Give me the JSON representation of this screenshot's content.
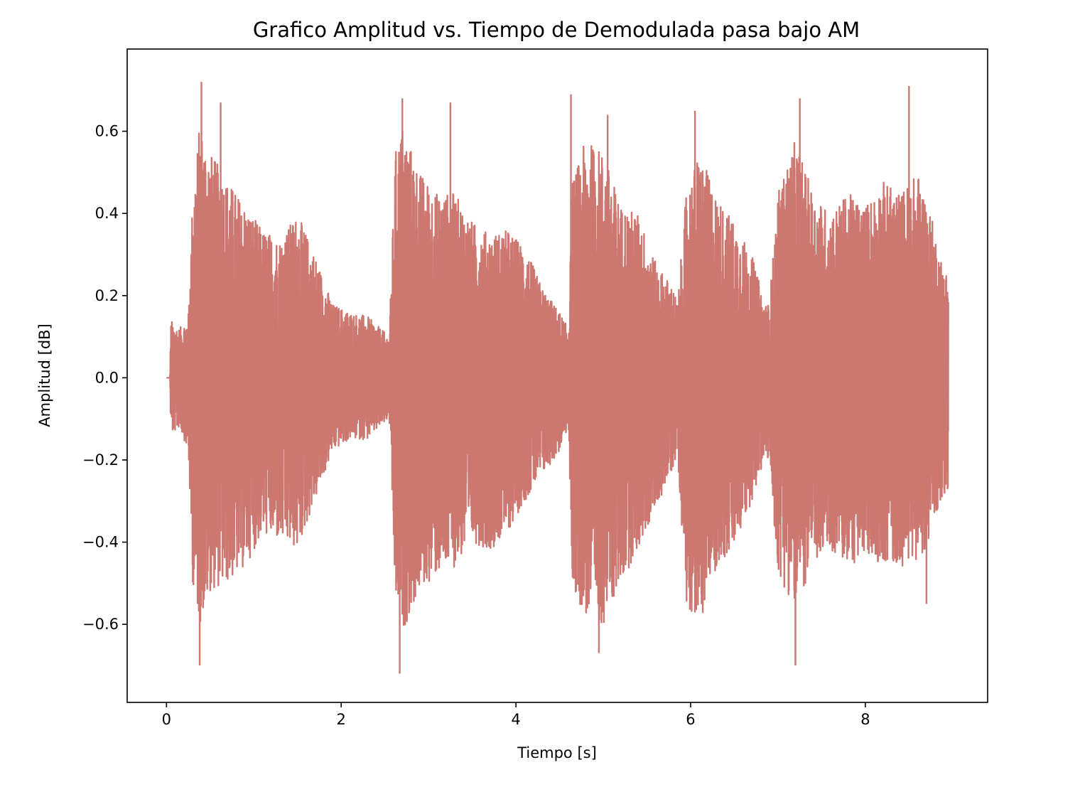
{
  "chart_data": {
    "type": "line",
    "title": "Grafico Amplitud vs. Tiempo de Demodulada pasa bajo AM",
    "xlabel": "Tiempo [s]",
    "ylabel": "Amplitud [dB]",
    "xlim": [
      -0.45,
      9.4
    ],
    "ylim": [
      -0.79,
      0.8
    ],
    "x_ticks": [
      0,
      2,
      4,
      6,
      8
    ],
    "x_tick_labels": [
      "0",
      "2",
      "4",
      "6",
      "8"
    ],
    "y_ticks": [
      0.6,
      0.4,
      0.2,
      0.0,
      -0.2,
      -0.4,
      -0.6
    ],
    "y_tick_labels": [
      "0.6",
      "0.4",
      "0.2",
      "0.0",
      "−0.2",
      "−0.4",
      "−0.6"
    ],
    "grid": false,
    "legend": "none",
    "series": [
      {
        "color": "#cd7771",
        "t_range": [
          0,
          8.95
        ],
        "envelope": {
          "t": [
            0.0,
            0.04,
            0.05,
            0.15,
            0.25,
            0.3,
            0.38,
            0.5,
            0.7,
            0.9,
            1.1,
            1.3,
            1.5,
            1.7,
            1.9,
            2.1,
            2.3,
            2.45,
            2.55,
            2.62,
            2.7,
            2.9,
            3.1,
            3.3,
            3.5,
            3.7,
            3.9,
            4.1,
            4.3,
            4.5,
            4.6,
            4.65,
            4.8,
            5.0,
            5.2,
            5.4,
            5.6,
            5.8,
            5.85,
            5.95,
            6.1,
            6.3,
            6.5,
            6.7,
            6.85,
            6.9,
            7.0,
            7.2,
            7.4,
            7.6,
            7.8,
            8.0,
            8.2,
            8.4,
            8.6,
            8.75,
            8.85,
            8.95
          ],
          "upper": [
            0.0,
            0.0,
            0.14,
            0.12,
            0.15,
            0.45,
            0.62,
            0.55,
            0.48,
            0.42,
            0.36,
            0.34,
            0.4,
            0.3,
            0.18,
            0.16,
            0.15,
            0.12,
            0.1,
            0.55,
            0.62,
            0.5,
            0.45,
            0.45,
            0.38,
            0.35,
            0.36,
            0.32,
            0.22,
            0.16,
            0.12,
            0.48,
            0.58,
            0.55,
            0.42,
            0.4,
            0.28,
            0.22,
            0.18,
            0.45,
            0.55,
            0.44,
            0.38,
            0.3,
            0.18,
            0.18,
            0.45,
            0.58,
            0.45,
            0.4,
            0.45,
            0.42,
            0.48,
            0.45,
            0.5,
            0.4,
            0.3,
            0.25
          ],
          "lower": [
            0.0,
            0.0,
            -0.14,
            -0.12,
            -0.18,
            -0.5,
            -0.6,
            -0.52,
            -0.5,
            -0.46,
            -0.38,
            -0.4,
            -0.42,
            -0.3,
            -0.18,
            -0.15,
            -0.15,
            -0.12,
            -0.1,
            -0.55,
            -0.62,
            -0.52,
            -0.48,
            -0.46,
            -0.4,
            -0.42,
            -0.38,
            -0.3,
            -0.24,
            -0.18,
            -0.12,
            -0.52,
            -0.58,
            -0.6,
            -0.5,
            -0.42,
            -0.32,
            -0.22,
            -0.18,
            -0.55,
            -0.6,
            -0.46,
            -0.42,
            -0.3,
            -0.2,
            -0.2,
            -0.48,
            -0.56,
            -0.46,
            -0.42,
            -0.46,
            -0.44,
            -0.45,
            -0.46,
            -0.44,
            -0.4,
            -0.3,
            -0.28
          ]
        },
        "peaks": [
          {
            "t": 0.4,
            "y": 0.72
          },
          {
            "t": 0.38,
            "y": -0.7
          },
          {
            "t": 0.62,
            "y": 0.67
          },
          {
            "t": 2.7,
            "y": 0.68
          },
          {
            "t": 2.67,
            "y": -0.72
          },
          {
            "t": 3.25,
            "y": 0.67
          },
          {
            "t": 4.63,
            "y": 0.69
          },
          {
            "t": 4.95,
            "y": -0.67
          },
          {
            "t": 5.05,
            "y": 0.64
          },
          {
            "t": 6.05,
            "y": 0.65
          },
          {
            "t": 7.25,
            "y": 0.68
          },
          {
            "t": 7.2,
            "y": -0.7
          },
          {
            "t": 8.5,
            "y": 0.71
          },
          {
            "t": 8.7,
            "y": -0.55
          }
        ]
      }
    ]
  }
}
